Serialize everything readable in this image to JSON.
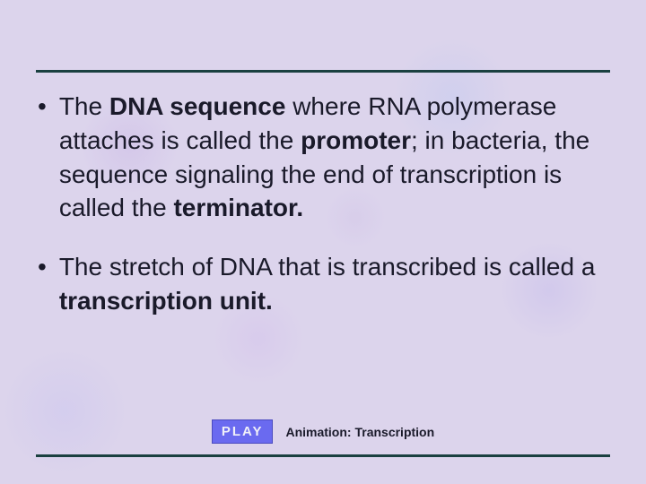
{
  "bullets": [
    {
      "segments": [
        {
          "text": "The ",
          "bold": false
        },
        {
          "text": "DNA sequence",
          "bold": true
        },
        {
          "text": " where RNA polymerase attaches is called the ",
          "bold": false
        },
        {
          "text": "promoter",
          "bold": true
        },
        {
          "text": "; in bacteria, the sequence signaling the end of transcription is called the ",
          "bold": false
        },
        {
          "text": "terminator.",
          "bold": true
        }
      ]
    },
    {
      "segments": [
        {
          "text": "The stretch of DNA that is transcribed is called a ",
          "bold": false
        },
        {
          "text": "transcription unit.",
          "bold": true
        }
      ]
    }
  ],
  "play": {
    "button_label": "PLAY",
    "caption": "Animation: Transcription"
  },
  "colors": {
    "rule": "#1a4040",
    "text": "#1a1a2a",
    "play_bg": "#6a6af0",
    "play_fg": "#f0f0f8",
    "background": "#dcd4ec"
  }
}
